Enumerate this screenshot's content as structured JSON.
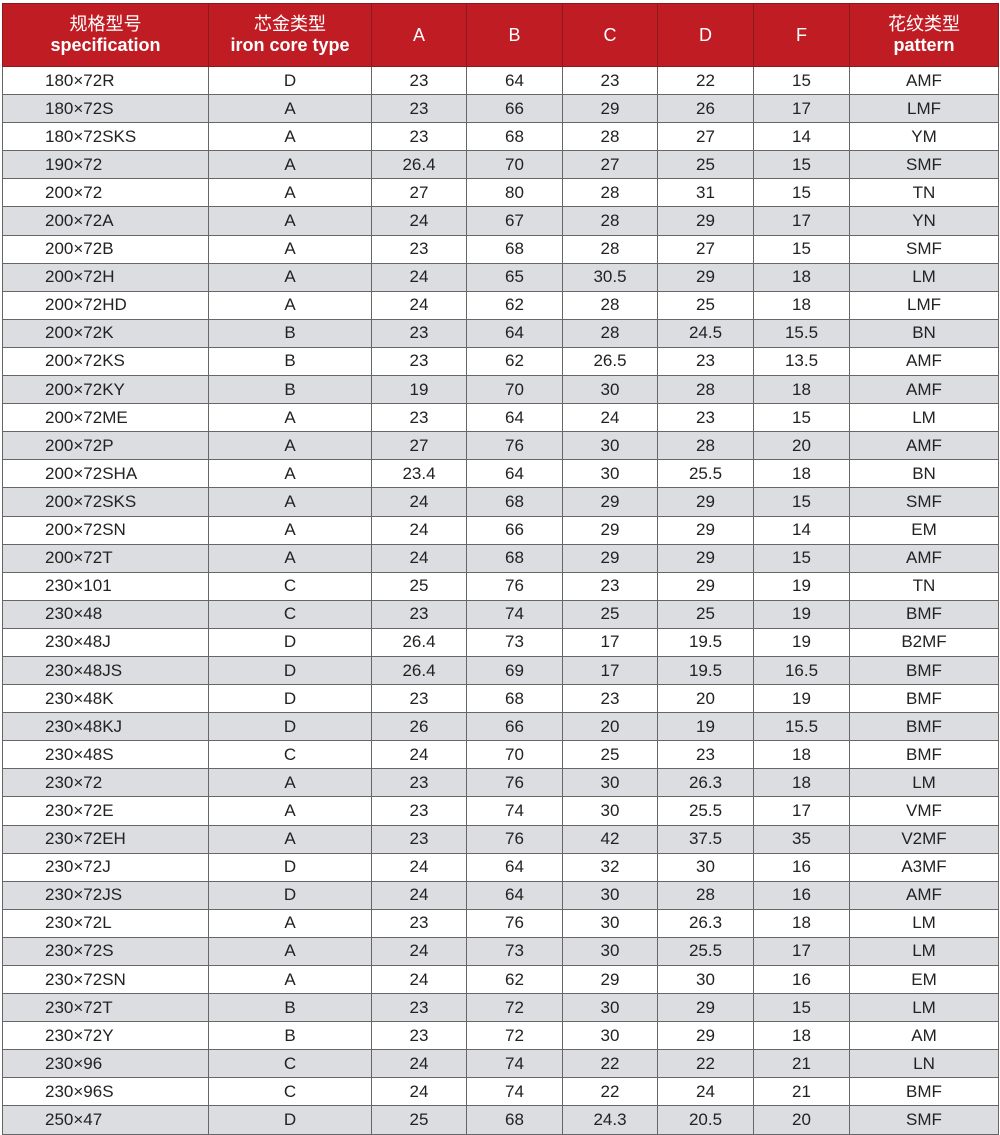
{
  "header": {
    "spec_cn": "规格型号",
    "spec_en": "specification",
    "core_cn": "芯金类型",
    "core_en": "iron core type",
    "a": "A",
    "b": "B",
    "c": "C",
    "d": "D",
    "f": "F",
    "pattern_cn": "花纹类型",
    "pattern_en": "pattern"
  },
  "colors": {
    "header_bg": "#c01c24",
    "stripe": "#dcdde0"
  },
  "rows": [
    [
      "180×72R",
      "D",
      "23",
      "64",
      "23",
      "22",
      "15",
      "AMF"
    ],
    [
      "180×72S",
      "A",
      "23",
      "66",
      "29",
      "26",
      "17",
      "LMF"
    ],
    [
      "180×72SKS",
      "A",
      "23",
      "68",
      "28",
      "27",
      "14",
      "YM"
    ],
    [
      "190×72",
      "A",
      "26.4",
      "70",
      "27",
      "25",
      "15",
      "SMF"
    ],
    [
      "200×72",
      "A",
      "27",
      "80",
      "28",
      "31",
      "15",
      "TN"
    ],
    [
      "200×72A",
      "A",
      "24",
      "67",
      "28",
      "29",
      "17",
      "YN"
    ],
    [
      "200×72B",
      "A",
      "23",
      "68",
      "28",
      "27",
      "15",
      "SMF"
    ],
    [
      "200×72H",
      "A",
      "24",
      "65",
      "30.5",
      "29",
      "18",
      "LM"
    ],
    [
      "200×72HD",
      "A",
      "24",
      "62",
      "28",
      "25",
      "18",
      "LMF"
    ],
    [
      "200×72K",
      "B",
      "23",
      "64",
      "28",
      "24.5",
      "15.5",
      "BN"
    ],
    [
      "200×72KS",
      "B",
      "23",
      "62",
      "26.5",
      "23",
      "13.5",
      "AMF"
    ],
    [
      "200×72KY",
      "B",
      "19",
      "70",
      "30",
      "28",
      "18",
      "AMF"
    ],
    [
      "200×72ME",
      "A",
      "23",
      "64",
      "24",
      "23",
      "15",
      "LM"
    ],
    [
      "200×72P",
      "A",
      "27",
      "76",
      "30",
      "28",
      "20",
      "AMF"
    ],
    [
      "200×72SHA",
      "A",
      "23.4",
      "64",
      "30",
      "25.5",
      "18",
      "BN"
    ],
    [
      "200×72SKS",
      "A",
      "24",
      "68",
      "29",
      "29",
      "15",
      "SMF"
    ],
    [
      "200×72SN",
      "A",
      "24",
      "66",
      "29",
      "29",
      "14",
      "EM"
    ],
    [
      "200×72T",
      "A",
      "24",
      "68",
      "29",
      "29",
      "15",
      "AMF"
    ],
    [
      "230×101",
      "C",
      "25",
      "76",
      "23",
      "29",
      "19",
      "TN"
    ],
    [
      "230×48",
      "C",
      "23",
      "74",
      "25",
      "25",
      "19",
      "BMF"
    ],
    [
      "230×48J",
      "D",
      "26.4",
      "73",
      "17",
      "19.5",
      "19",
      "B2MF"
    ],
    [
      "230×48JS",
      "D",
      "26.4",
      "69",
      "17",
      "19.5",
      "16.5",
      "BMF"
    ],
    [
      "230×48K",
      "D",
      "23",
      "68",
      "23",
      "20",
      "19",
      "BMF"
    ],
    [
      "230×48KJ",
      "D",
      "26",
      "66",
      "20",
      "19",
      "15.5",
      "BMF"
    ],
    [
      "230×48S",
      "C",
      "24",
      "70",
      "25",
      "23",
      "18",
      "BMF"
    ],
    [
      "230×72",
      "A",
      "23",
      "76",
      "30",
      "26.3",
      "18",
      "LM"
    ],
    [
      "230×72E",
      "A",
      "23",
      "74",
      "30",
      "25.5",
      "17",
      "VMF"
    ],
    [
      "230×72EH",
      "A",
      "23",
      "76",
      "42",
      "37.5",
      "35",
      "V2MF"
    ],
    [
      "230×72J",
      "D",
      "24",
      "64",
      "32",
      "30",
      "16",
      "A3MF"
    ],
    [
      "230×72JS",
      "D",
      "24",
      "64",
      "30",
      "28",
      "16",
      "AMF"
    ],
    [
      "230×72L",
      "A",
      "23",
      "76",
      "30",
      "26.3",
      "18",
      "LM"
    ],
    [
      "230×72S",
      "A",
      "24",
      "73",
      "30",
      "25.5",
      "17",
      "LM"
    ],
    [
      "230×72SN",
      "A",
      "24",
      "62",
      "29",
      "30",
      "16",
      "EM"
    ],
    [
      "230×72T",
      "B",
      "23",
      "72",
      "30",
      "29",
      "15",
      "LM"
    ],
    [
      "230×72Y",
      "B",
      "23",
      "72",
      "30",
      "29",
      "18",
      "AM"
    ],
    [
      "230×96",
      "C",
      "24",
      "74",
      "22",
      "22",
      "21",
      "LN"
    ],
    [
      "230×96S",
      "C",
      "24",
      "74",
      "22",
      "24",
      "21",
      "BMF"
    ],
    [
      "250×47",
      "D",
      "25",
      "68",
      "24.3",
      "20.5",
      "20",
      "SMF"
    ]
  ]
}
